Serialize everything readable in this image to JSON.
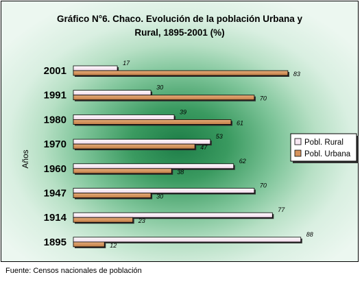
{
  "title_line1": "Gráfico N°6. Chaco. Evolución de la población Urbana y",
  "title_line2": "Rural, 1895-2001 (%)",
  "source": "Fuente: Censos nacionales de población",
  "chart_data": {
    "type": "bar",
    "orientation": "horizontal",
    "ylabel": "Años",
    "categories": [
      "2001",
      "1991",
      "1980",
      "1970",
      "1960",
      "1947",
      "1914",
      "1895"
    ],
    "series": [
      {
        "name": "Pobl. Rural",
        "values": [
          17,
          30,
          39,
          53,
          62,
          70,
          77,
          88
        ],
        "color": "#f7e6f2"
      },
      {
        "name": "Pobl. Urbana",
        "values": [
          83,
          70,
          61,
          47,
          38,
          30,
          23,
          12
        ],
        "color": "#d6935d"
      }
    ],
    "xlim": [
      0,
      100
    ],
    "legend": "right",
    "data_labels": true,
    "grid": false
  }
}
